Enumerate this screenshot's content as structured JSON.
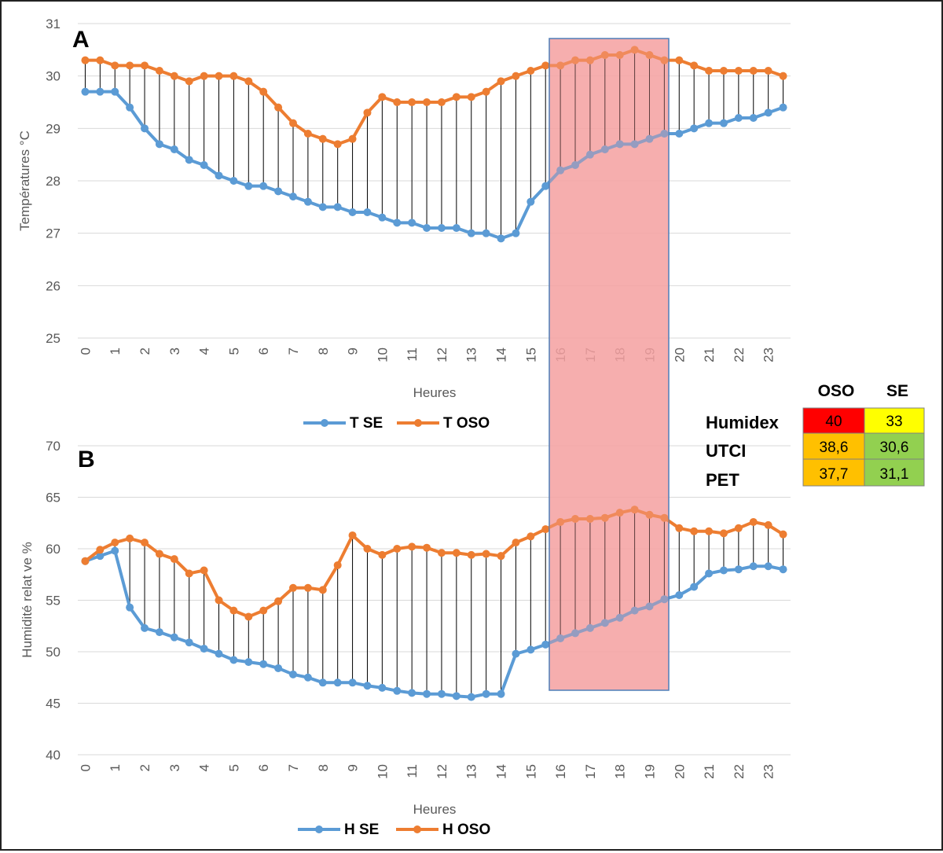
{
  "colors": {
    "se": "#5b9bd5",
    "oso": "#ed7d31",
    "highlight": "#f4a0a0",
    "highlight_border": "#4f7fb8",
    "grid": "#d9d9d9",
    "drop": "#000000",
    "red": "#ff0000",
    "yellow": "#ffff00",
    "orange": "#ffc000",
    "green": "#92d050"
  },
  "chart_data": [
    {
      "id": "A",
      "type": "line",
      "panel_label": "A",
      "xlabel": "Heures",
      "ylabel": "Températures °C",
      "ylim": [
        25,
        31
      ],
      "yticks": [
        "25",
        "26",
        "27",
        "28",
        "29",
        "30",
        "31"
      ],
      "xticks": [
        "0",
        "1",
        "2",
        "3",
        "4",
        "5",
        "6",
        "7",
        "8",
        "9",
        "10",
        "11",
        "12",
        "13",
        "14",
        "15",
        "16",
        "17",
        "18",
        "19",
        "20",
        "21",
        "22",
        "23"
      ],
      "x": [
        0,
        0.5,
        1,
        1.5,
        2,
        2.5,
        3,
        3.5,
        4,
        4.5,
        5,
        5.5,
        6,
        6.5,
        7,
        7.5,
        8,
        8.5,
        9,
        9.5,
        10,
        10.5,
        11,
        11.5,
        12,
        12.5,
        13,
        13.5,
        14,
        14.5,
        15,
        15.5,
        16,
        16.5,
        17,
        17.5,
        18,
        18.5,
        19,
        19.5,
        20,
        20.5,
        21,
        21.5,
        22,
        22.5,
        23,
        23.5
      ],
      "drop_lines": true,
      "highlight_x": [
        15.5,
        19.5
      ],
      "series": [
        {
          "name": "T SE",
          "color": "#5b9bd5",
          "values": [
            29.7,
            29.7,
            29.7,
            29.4,
            29.0,
            28.7,
            28.6,
            28.4,
            28.3,
            28.1,
            28.0,
            27.9,
            27.9,
            27.8,
            27.7,
            27.6,
            27.5,
            27.5,
            27.4,
            27.4,
            27.3,
            27.2,
            27.2,
            27.1,
            27.1,
            27.1,
            27.0,
            27.0,
            26.9,
            27.0,
            27.6,
            27.9,
            28.2,
            28.3,
            28.5,
            28.6,
            28.7,
            28.7,
            28.8,
            28.9,
            28.9,
            29.0,
            29.1,
            29.1,
            29.2,
            29.2,
            29.3,
            29.4
          ]
        },
        {
          "name": "T OSO",
          "color": "#ed7d31",
          "values": [
            30.3,
            30.3,
            30.2,
            30.2,
            30.2,
            30.1,
            30.0,
            29.9,
            30.0,
            30.0,
            30.0,
            29.9,
            29.7,
            29.4,
            29.1,
            28.9,
            28.8,
            28.7,
            28.8,
            29.3,
            29.6,
            29.5,
            29.5,
            29.5,
            29.5,
            29.6,
            29.6,
            29.7,
            29.9,
            30.0,
            30.1,
            30.2,
            30.2,
            30.3,
            30.3,
            30.4,
            30.4,
            30.5,
            30.4,
            30.3,
            30.3,
            30.2,
            30.1,
            30.1,
            30.1,
            30.1,
            30.1,
            30.0
          ]
        }
      ]
    },
    {
      "id": "B",
      "type": "line",
      "panel_label": "B",
      "xlabel": "Heures",
      "ylabel": "Humidité relat ve %",
      "ylim": [
        40,
        70
      ],
      "yticks": [
        "40",
        "45",
        "50",
        "55",
        "60",
        "65",
        "70"
      ],
      "xticks": [
        "0",
        "1",
        "2",
        "3",
        "4",
        "5",
        "6",
        "7",
        "8",
        "9",
        "10",
        "11",
        "12",
        "13",
        "14",
        "15",
        "16",
        "17",
        "18",
        "19",
        "20",
        "21",
        "22",
        "23"
      ],
      "x": [
        0,
        0.5,
        1,
        1.5,
        2,
        2.5,
        3,
        3.5,
        4,
        4.5,
        5,
        5.5,
        6,
        6.5,
        7,
        7.5,
        8,
        8.5,
        9,
        9.5,
        10,
        10.5,
        11,
        11.5,
        12,
        12.5,
        13,
        13.5,
        14,
        14.5,
        15,
        15.5,
        16,
        16.5,
        17,
        17.5,
        18,
        18.5,
        19,
        19.5,
        20,
        20.5,
        21,
        21.5,
        22,
        22.5,
        23,
        23.5
      ],
      "drop_lines": true,
      "highlight_x": [
        15.5,
        19.5
      ],
      "series": [
        {
          "name": "H SE",
          "color": "#5b9bd5",
          "values": [
            58.8,
            59.3,
            59.8,
            54.3,
            52.3,
            51.9,
            51.4,
            50.9,
            50.3,
            49.8,
            49.2,
            49.0,
            48.8,
            48.4,
            47.8,
            47.5,
            47.0,
            47.0,
            47.0,
            46.7,
            46.5,
            46.2,
            46.0,
            45.9,
            45.9,
            45.7,
            45.6,
            45.9,
            45.9,
            49.8,
            50.2,
            50.7,
            51.3,
            51.8,
            52.3,
            52.8,
            53.3,
            54.0,
            54.4,
            55.1,
            55.5,
            56.3,
            57.6,
            57.9,
            58.0,
            58.3,
            58.3,
            58.0
          ]
        },
        {
          "name": "H OSO",
          "color": "#ed7d31",
          "values": [
            58.8,
            59.9,
            60.6,
            61.0,
            60.6,
            59.5,
            59.0,
            57.6,
            57.9,
            55.0,
            54.0,
            53.4,
            54.0,
            54.9,
            56.2,
            56.2,
            56.0,
            58.4,
            61.3,
            60.0,
            59.4,
            60.0,
            60.2,
            60.1,
            59.6,
            59.6,
            59.4,
            59.5,
            59.3,
            60.6,
            61.2,
            61.9,
            62.6,
            62.9,
            62.9,
            63.0,
            63.5,
            63.8,
            63.3,
            63.0,
            62.0,
            61.7,
            61.7,
            61.5,
            62.0,
            62.6,
            62.3,
            61.4
          ]
        }
      ]
    }
  ],
  "comfort_table": {
    "columns": [
      "OSO",
      "SE"
    ],
    "rows": [
      {
        "label": "Humidex",
        "oso": "40",
        "se": "33",
        "oso_color": "#ff0000",
        "se_color": "#ffff00"
      },
      {
        "label": "UTCI",
        "oso": "38,6",
        "se": "30,6",
        "oso_color": "#ffc000",
        "se_color": "#92d050"
      },
      {
        "label": "PET",
        "oso": "37,7",
        "se": "31,1",
        "oso_color": "#ffc000",
        "se_color": "#92d050"
      }
    ]
  }
}
